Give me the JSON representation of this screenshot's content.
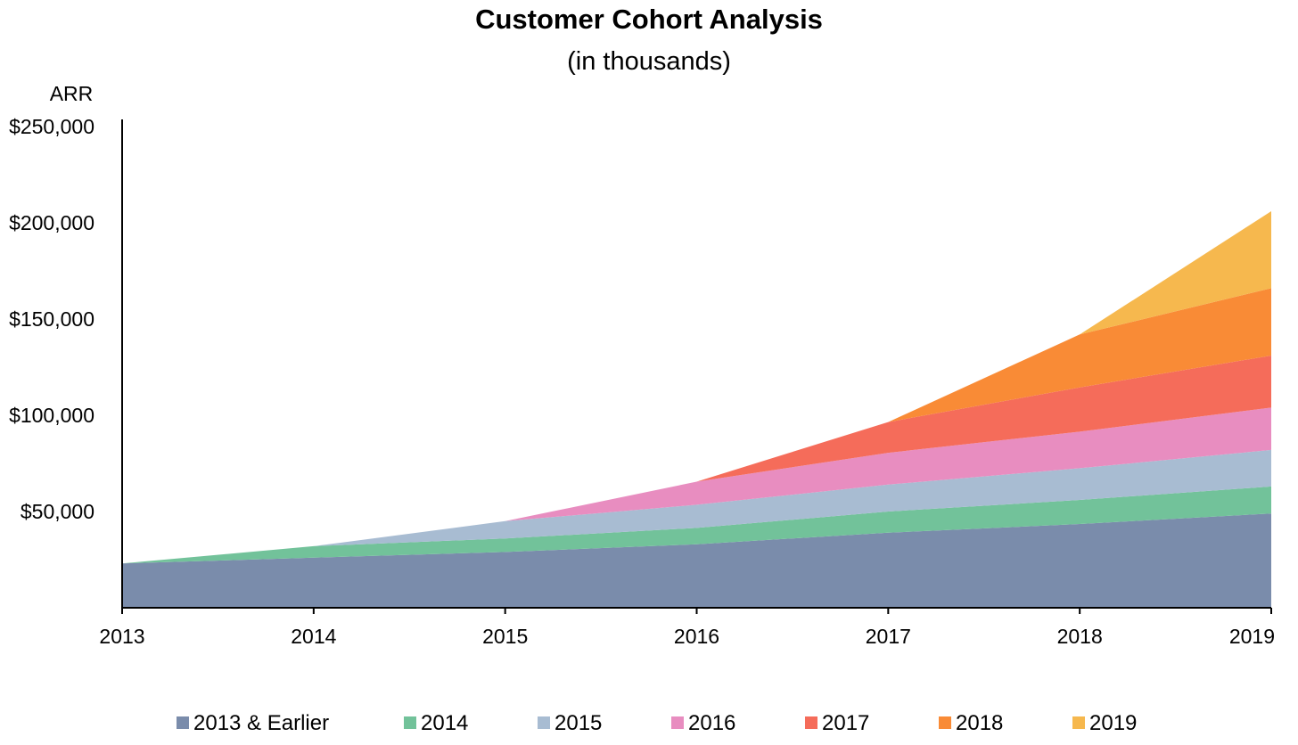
{
  "chart_data": {
    "type": "area",
    "stacked": true,
    "title": "Customer Cohort Analysis",
    "subtitle": "(in thousands)",
    "ylabel": "ARR",
    "xlabel": "",
    "x": [
      "2013",
      "2014",
      "2015",
      "2016",
      "2017",
      "2018",
      "2019"
    ],
    "ylim": [
      0,
      250000
    ],
    "yticks": [
      {
        "value": 50000,
        "label": "$50,000"
      },
      {
        "value": 100000,
        "label": "$100,000"
      },
      {
        "value": 150000,
        "label": "$150,000"
      },
      {
        "value": 200000,
        "label": "$200,000"
      },
      {
        "value": 250000,
        "label": "$250,000"
      }
    ],
    "grid": false,
    "legend_position": "bottom",
    "series": [
      {
        "name": "2013 & Earlier",
        "color": "#7a8cab",
        "values": [
          23000,
          26000,
          29000,
          33000,
          39000,
          43500,
          49000
        ]
      },
      {
        "name": "2014",
        "color": "#72c29a",
        "values": [
          0,
          6000,
          7000,
          8500,
          11000,
          12500,
          14000
        ]
      },
      {
        "name": "2015",
        "color": "#a8bcd2",
        "values": [
          0,
          0,
          9000,
          12000,
          14000,
          16500,
          19000
        ]
      },
      {
        "name": "2016",
        "color": "#e88dc0",
        "values": [
          0,
          0,
          0,
          12000,
          16500,
          19000,
          22000
        ]
      },
      {
        "name": "2017",
        "color": "#f56c5a",
        "values": [
          0,
          0,
          0,
          0,
          16000,
          23000,
          27000
        ]
      },
      {
        "name": "2018",
        "color": "#f98b36",
        "values": [
          0,
          0,
          0,
          0,
          0,
          27500,
          35000
        ]
      },
      {
        "name": "2019",
        "color": "#f6b84e",
        "values": [
          0,
          0,
          0,
          0,
          0,
          0,
          40000
        ]
      }
    ]
  }
}
